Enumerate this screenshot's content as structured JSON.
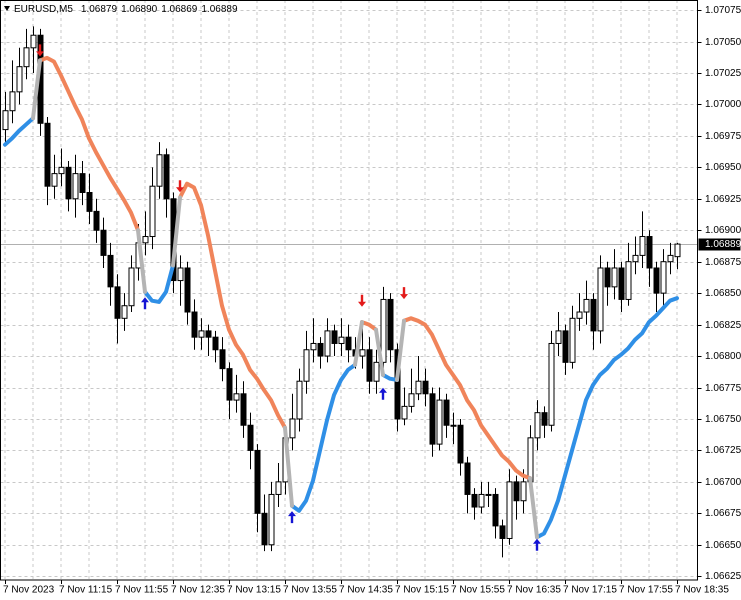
{
  "chart_data": {
    "type": "candlestick",
    "symbol": "EURUSD,M5",
    "header_values": [
      "1.06879",
      "1.06890",
      "1.06869",
      "1.06889"
    ],
    "categories": [
      "7 Nov 2023",
      null,
      null,
      null,
      null,
      null,
      null,
      null,
      "7 Nov 11:15",
      null,
      null,
      null,
      null,
      null,
      null,
      null,
      "7 Nov 11:55",
      null,
      null,
      null,
      null,
      null,
      null,
      null,
      "7 Nov 12:35",
      null,
      null,
      null,
      null,
      null,
      null,
      null,
      "7 Nov 13:15",
      null,
      null,
      null,
      null,
      null,
      null,
      null,
      "7 Nov 13:55",
      null,
      null,
      null,
      null,
      null,
      null,
      null,
      "7 Nov 14:35",
      null,
      null,
      null,
      null,
      null,
      null,
      null,
      "7 Nov 15:15",
      null,
      null,
      null,
      null,
      null,
      null,
      null,
      "7 Nov 15:55",
      null,
      null,
      null,
      null,
      null,
      null,
      null,
      "7 Nov 16:35",
      null,
      null,
      null,
      null,
      null,
      null,
      null,
      "7 Nov 17:15",
      null,
      null,
      null,
      null,
      null,
      null,
      null,
      "7 Nov 17:55",
      null,
      null,
      null,
      null,
      null,
      null,
      null,
      "7 Nov 18:35"
    ],
    "open": [
      1.0698,
      1.06995,
      1.0701,
      1.0703,
      1.07045,
      1.07055,
      1.06985,
      1.06935,
      1.06945,
      1.0695,
      1.06925,
      1.06945,
      1.0693,
      1.06915,
      1.069,
      1.0688,
      1.06855,
      1.0683,
      1.0684,
      1.0687,
      1.0689,
      1.06895,
      1.06935,
      1.0696,
      1.06925,
      1.0686,
      1.0687,
      1.06835,
      1.06815,
      1.0682,
      1.06815,
      1.06805,
      1.0679,
      1.06765,
      1.0677,
      1.06745,
      1.06725,
      1.06675,
      1.0665,
      1.0669,
      1.067,
      1.06735,
      1.0675,
      1.0678,
      1.06805,
      1.0681,
      1.068,
      1.0682,
      1.0681,
      1.06815,
      1.06805,
      1.068,
      1.06805,
      1.0678,
      1.06795,
      1.06845,
      1.06805,
      1.0675,
      1.0676,
      1.0677,
      1.0678,
      1.0677,
      1.0673,
      1.06765,
      1.06745,
      1.06745,
      1.06715,
      1.0669,
      1.0668,
      1.0669,
      1.0669,
      1.06665,
      1.06655,
      1.067,
      1.06685,
      1.067,
      1.06735,
      1.06755,
      1.06745,
      1.0681,
      1.0682,
      1.06795,
      1.0683,
      1.06835,
      1.06845,
      1.0682,
      1.0687,
      1.06855,
      1.0687,
      1.06845,
      1.06875,
      1.0688,
      1.06895,
      1.0687,
      1.0685,
      1.06875,
      1.06879
    ],
    "high": [
      1.0701,
      1.07035,
      1.07045,
      1.0706,
      1.07062,
      1.0706,
      1.0699,
      1.0696,
      1.06965,
      1.06955,
      1.0696,
      1.06955,
      1.06945,
      1.06925,
      1.0691,
      1.0689,
      1.06865,
      1.0685,
      1.0688,
      1.06905,
      1.06915,
      1.0695,
      1.0697,
      1.06965,
      1.0693,
      1.0688,
      1.06875,
      1.06845,
      1.0683,
      1.06825,
      1.0682,
      1.06815,
      1.06795,
      1.06785,
      1.0678,
      1.06755,
      1.0673,
      1.0669,
      1.067,
      1.06715,
      1.06745,
      1.0677,
      1.0679,
      1.0682,
      1.0683,
      1.06815,
      1.0683,
      1.06825,
      1.0683,
      1.06825,
      1.06815,
      1.06825,
      1.06815,
      1.06805,
      1.06855,
      1.0685,
      1.0681,
      1.06775,
      1.0679,
      1.068,
      1.0679,
      1.06775,
      1.06775,
      1.0677,
      1.06755,
      1.0675,
      1.0672,
      1.06695,
      1.067,
      1.067,
      1.06695,
      1.0667,
      1.0671,
      1.06705,
      1.0671,
      1.06745,
      1.06765,
      1.0676,
      1.0682,
      1.06835,
      1.06825,
      1.0684,
      1.0685,
      1.0686,
      1.0685,
      1.0688,
      1.06875,
      1.06885,
      1.06875,
      1.0689,
      1.06895,
      1.06915,
      1.069,
      1.06875,
      1.06885,
      1.0689,
      1.0689
    ],
    "low": [
      1.0697,
      1.06985,
      1.07,
      1.0702,
      1.07025,
      1.06975,
      1.0692,
      1.06925,
      1.06935,
      1.06915,
      1.0691,
      1.0692,
      1.06905,
      1.0689,
      1.0687,
      1.0684,
      1.0681,
      1.0682,
      1.06835,
      1.0686,
      1.0688,
      1.06885,
      1.06925,
      1.0691,
      1.0685,
      1.0684,
      1.06825,
      1.06805,
      1.06805,
      1.068,
      1.06795,
      1.0678,
      1.0675,
      1.06755,
      1.06735,
      1.0671,
      1.0666,
      1.06645,
      1.06645,
      1.0668,
      1.0669,
      1.06725,
      1.0674,
      1.0677,
      1.06795,
      1.0679,
      1.06795,
      1.068,
      1.068,
      1.06795,
      1.0679,
      1.0679,
      1.0677,
      1.0677,
      1.06785,
      1.06795,
      1.0674,
      1.06745,
      1.06755,
      1.06765,
      1.0676,
      1.0672,
      1.06725,
      1.06735,
      1.0673,
      1.06705,
      1.06675,
      1.0667,
      1.06675,
      1.0668,
      1.06655,
      1.0664,
      1.0665,
      1.0667,
      1.06675,
      1.0669,
      1.06725,
      1.06735,
      1.0674,
      1.068,
      1.06785,
      1.0679,
      1.0682,
      1.06825,
      1.06805,
      1.0681,
      1.0684,
      1.06845,
      1.06835,
      1.0684,
      1.06865,
      1.0687,
      1.06855,
      1.06835,
      1.0684,
      1.06865,
      1.06869
    ],
    "close": [
      1.06995,
      1.0701,
      1.0703,
      1.07045,
      1.07055,
      1.06985,
      1.06935,
      1.06945,
      1.0695,
      1.06925,
      1.06945,
      1.0693,
      1.06915,
      1.069,
      1.0688,
      1.06855,
      1.0683,
      1.0684,
      1.0687,
      1.0689,
      1.06895,
      1.06935,
      1.0696,
      1.06925,
      1.0686,
      1.0687,
      1.06835,
      1.06815,
      1.0682,
      1.06815,
      1.06805,
      1.0679,
      1.06765,
      1.0677,
      1.06745,
      1.06725,
      1.06675,
      1.0665,
      1.0669,
      1.067,
      1.06735,
      1.0675,
      1.0678,
      1.06805,
      1.0681,
      1.068,
      1.0682,
      1.0681,
      1.06815,
      1.06805,
      1.068,
      1.06805,
      1.0678,
      1.06795,
      1.06845,
      1.06805,
      1.0675,
      1.0676,
      1.0677,
      1.0678,
      1.0677,
      1.0673,
      1.06765,
      1.06745,
      1.06745,
      1.06715,
      1.0669,
      1.0668,
      1.0669,
      1.0669,
      1.06665,
      1.06655,
      1.067,
      1.06685,
      1.067,
      1.06735,
      1.06755,
      1.06745,
      1.0681,
      1.0682,
      1.06795,
      1.0683,
      1.06835,
      1.06845,
      1.0682,
      1.0687,
      1.06855,
      1.0687,
      1.06845,
      1.06875,
      1.0688,
      1.06895,
      1.0687,
      1.0685,
      1.06875,
      1.0688,
      1.06889
    ],
    "bull_color": "#ffffff",
    "bear_color": "#000000",
    "series": [
      {
        "color": "#f0845a",
        "values": [
          null,
          null,
          null,
          null,
          null,
          1.07035,
          1.07037,
          1.07034,
          1.07023,
          1.07011,
          1.06999,
          1.06988,
          1.06973,
          1.06962,
          1.06952,
          1.06942,
          1.06933,
          1.06924,
          1.06914,
          1.069,
          null,
          null,
          null,
          null,
          null,
          1.06926,
          1.06937,
          1.06934,
          1.0692,
          1.06896,
          1.06868,
          1.0684,
          1.06821,
          1.06809,
          1.06801,
          1.06789,
          1.06782,
          1.06773,
          1.06765,
          1.06753,
          1.06743,
          null,
          null,
          null,
          null,
          null,
          null,
          null,
          null,
          null,
          null,
          1.06827,
          1.06825,
          1.06821,
          null,
          null,
          null,
          1.06828,
          1.0683,
          1.06828,
          1.06825,
          1.06817,
          1.06805,
          1.06793,
          1.06785,
          1.06777,
          1.06765,
          1.06757,
          1.06745,
          1.06737,
          1.06729,
          1.06721,
          1.06716,
          1.06709,
          1.06705,
          1.06703,
          null,
          null,
          null,
          null,
          null,
          null,
          null,
          null,
          null,
          null,
          null,
          null,
          null,
          null,
          null,
          null,
          null,
          null,
          null,
          null,
          null
        ]
      },
      {
        "color": "#2f8fe6",
        "values": [
          1.06968,
          1.06973,
          1.06979,
          1.06984,
          1.06989,
          null,
          null,
          null,
          null,
          null,
          null,
          null,
          null,
          null,
          null,
          null,
          null,
          null,
          null,
          null,
          1.06851,
          1.06844,
          1.06843,
          1.06851,
          1.06872,
          null,
          null,
          null,
          null,
          null,
          null,
          null,
          null,
          null,
          null,
          null,
          null,
          null,
          null,
          null,
          null,
          1.06681,
          1.06677,
          1.06685,
          1.06701,
          1.06725,
          1.06749,
          1.06769,
          1.06781,
          1.06789,
          1.06793,
          null,
          null,
          null,
          1.06785,
          1.06782,
          1.06781,
          null,
          null,
          null,
          null,
          null,
          null,
          null,
          null,
          null,
          null,
          null,
          null,
          null,
          null,
          null,
          null,
          null,
          null,
          null,
          1.06656,
          1.06659,
          1.0667,
          1.06685,
          1.06705,
          1.06725,
          1.06745,
          1.06765,
          1.06777,
          1.06785,
          1.0679,
          1.06797,
          1.06801,
          1.06806,
          1.06813,
          1.06818,
          1.06827,
          1.06832,
          1.06838,
          1.06844,
          1.06846
        ]
      },
      {
        "color": "#b4b4b4",
        "values": [
          null,
          null,
          null,
          null,
          1.06989,
          1.07035,
          null,
          null,
          null,
          null,
          null,
          null,
          null,
          null,
          null,
          null,
          null,
          null,
          null,
          1.069,
          1.06851,
          null,
          null,
          null,
          1.06872,
          1.06926,
          null,
          null,
          null,
          null,
          null,
          null,
          null,
          null,
          null,
          null,
          null,
          null,
          null,
          null,
          1.06743,
          1.06681,
          null,
          null,
          null,
          null,
          null,
          null,
          null,
          null,
          1.06793,
          1.06827,
          null,
          1.06821,
          1.06785,
          null,
          1.06781,
          1.06828,
          null,
          null,
          null,
          null,
          null,
          null,
          null,
          null,
          null,
          null,
          null,
          null,
          null,
          null,
          null,
          null,
          null,
          1.06703,
          1.06656,
          null,
          null,
          null,
          null,
          null,
          null,
          null,
          null,
          null,
          null,
          null,
          null,
          null,
          null,
          null,
          null,
          null,
          null,
          null,
          null
        ]
      }
    ],
    "arrows": [
      {
        "color": "#e31b1b",
        "direction": "down",
        "values": [
          null,
          null,
          null,
          null,
          null,
          1.07043,
          null,
          null,
          null,
          null,
          null,
          null,
          null,
          null,
          null,
          null,
          null,
          null,
          null,
          null,
          null,
          null,
          null,
          null,
          null,
          1.06935,
          null,
          null,
          null,
          null,
          null,
          null,
          null,
          null,
          null,
          null,
          null,
          null,
          null,
          null,
          null,
          null,
          null,
          null,
          null,
          null,
          null,
          null,
          null,
          null,
          null,
          1.06844,
          null,
          null,
          null,
          null,
          null,
          1.0685,
          null,
          null,
          null,
          null,
          null,
          null,
          null,
          null,
          null,
          null,
          null,
          null,
          null,
          null,
          null,
          null,
          null,
          null,
          null,
          null,
          null,
          null,
          null,
          null,
          null,
          null,
          null,
          null,
          null,
          null,
          null,
          null,
          null,
          null,
          null,
          null,
          null,
          null,
          null
        ]
      },
      {
        "color": "#1414d4",
        "direction": "up",
        "values": [
          null,
          null,
          null,
          null,
          null,
          null,
          null,
          null,
          null,
          null,
          null,
          null,
          null,
          null,
          null,
          null,
          null,
          null,
          null,
          null,
          1.06842,
          null,
          null,
          null,
          null,
          null,
          null,
          null,
          null,
          null,
          null,
          null,
          null,
          null,
          null,
          null,
          null,
          null,
          null,
          null,
          null,
          1.06672,
          null,
          null,
          null,
          null,
          null,
          null,
          null,
          null,
          null,
          null,
          null,
          null,
          1.0677,
          null,
          null,
          null,
          null,
          null,
          null,
          null,
          null,
          null,
          null,
          null,
          null,
          null,
          null,
          null,
          null,
          null,
          null,
          null,
          null,
          null,
          1.0665,
          null,
          null,
          null,
          null,
          null,
          null,
          null,
          null,
          null,
          null,
          null,
          null,
          null,
          null,
          null,
          null,
          null,
          null,
          null,
          null
        ]
      }
    ],
    "last_price": {
      "value": 1.06889,
      "label": "1.06889"
    },
    "ylim": [
      1.06622,
      1.07083
    ],
    "yticks": [
      1.07075,
      {
        "value": 1.0705,
        "label": "1.07050"
      },
      1.07025,
      {
        "value": 1.07,
        "label": "1.07000"
      },
      1.06975,
      {
        "value": 1.0695,
        "label": "1.06950"
      },
      1.06925,
      {
        "value": 1.069,
        "label": "1.06900"
      },
      1.06875,
      {
        "value": 1.0685,
        "label": "1.06850"
      },
      1.06825,
      {
        "value": 1.068,
        "label": "1.06800"
      },
      1.06775,
      {
        "value": 1.0675,
        "label": "1.06750"
      },
      1.06725,
      {
        "value": 1.067,
        "label": "1.06700"
      },
      1.06675,
      {
        "value": 1.0665,
        "label": "1.06650"
      },
      1.06625
    ],
    "grid": true
  }
}
